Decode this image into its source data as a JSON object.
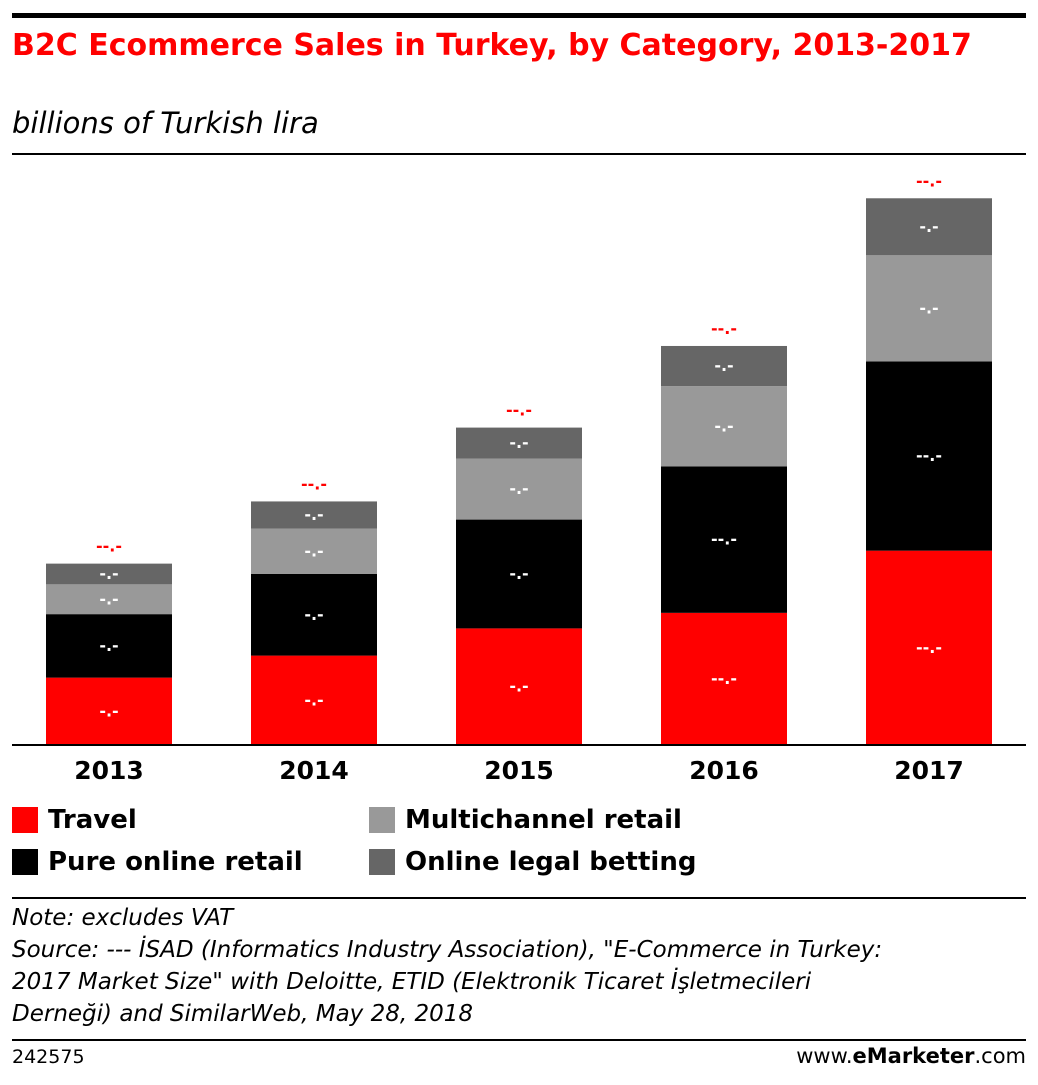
{
  "title": "B2C Ecommerce Sales in Turkey, by Category, 2013-2017",
  "subtitle": "billions of Turkish lira",
  "colors": {
    "accent": "#ff0000",
    "travel": "#ff0000",
    "pure_online": "#000000",
    "multichannel": "#999999",
    "betting": "#666666"
  },
  "chart_data": {
    "type": "bar",
    "stacked": true,
    "title": "B2C Ecommerce Sales in Turkey, by Category, 2013-2017",
    "ylabel": "billions of Turkish lira",
    "categories": [
      "2013",
      "2014",
      "2015",
      "2016",
      "2017"
    ],
    "series": [
      {
        "name": "Travel",
        "color": "#ff0000",
        "values": [
          5.2,
          6.9,
          9.0,
          10.2,
          15.0
        ],
        "labels": [
          "-.-",
          "-.-",
          "-.-",
          "--.-",
          "--.-"
        ]
      },
      {
        "name": "Pure online retail",
        "color": "#000000",
        "values": [
          4.9,
          6.3,
          8.4,
          11.3,
          14.6
        ],
        "labels": [
          "-.-",
          "-.-",
          "-.-",
          "--.-",
          "--.-"
        ]
      },
      {
        "name": "Multichannel retail",
        "color": "#999999",
        "values": [
          2.3,
          3.5,
          4.7,
          6.2,
          8.2
        ],
        "labels": [
          "-.-",
          "-.-",
          "-.-",
          "-.-",
          "-.-"
        ]
      },
      {
        "name": "Online legal betting",
        "color": "#666666",
        "values": [
          1.6,
          2.1,
          2.4,
          3.1,
          4.4
        ],
        "labels": [
          "-.-",
          "-.-",
          "-.-",
          "-.-",
          "-.-"
        ]
      }
    ],
    "totals": [
      14.0,
      18.8,
      24.5,
      30.8,
      42.2
    ],
    "total_labels": [
      "--.-",
      "--.-",
      "--.-",
      "--.-",
      "--.-"
    ],
    "grid": false,
    "legend_position": "bottom",
    "ylim": [
      0,
      45
    ]
  },
  "legend": [
    "Travel",
    "Multichannel retail",
    "Pure online retail",
    "Online legal betting"
  ],
  "notes": {
    "note": "Note: excludes VAT",
    "source_1": "Source: ---   İSAD (Informatics Industry Association), \"E-Commerce in Turkey:",
    "source_2": "2017 Market Size\" with Deloitte, ETID (Elektronik Ticaret  İşletmecileri",
    "source_3": "Derneği) and SimilarWeb, May 28, 2018"
  },
  "footer": {
    "id": "242575",
    "brand_pre": "www.",
    "brand_bold": "eMarketer",
    "brand_post": ".com"
  }
}
